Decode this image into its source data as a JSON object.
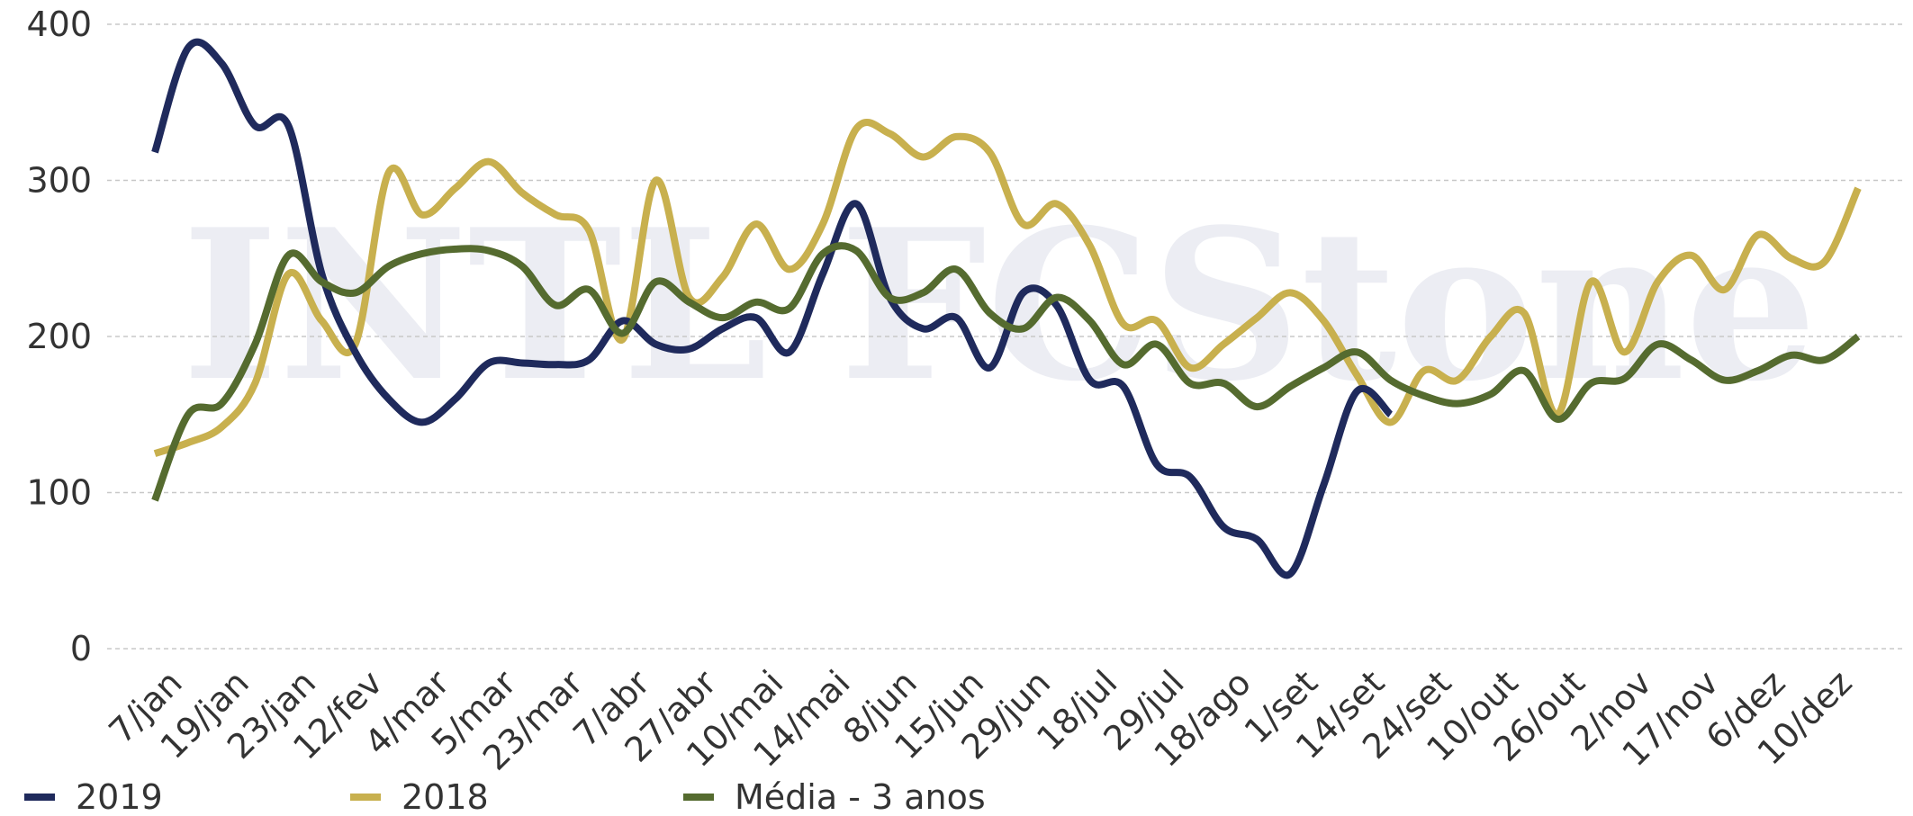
{
  "chart_data": {
    "type": "line",
    "watermark": "INTL FCStone",
    "categories": [
      "7/jan",
      null,
      "19/jan",
      null,
      "23/jan",
      null,
      "12/fev",
      null,
      "4/mar",
      null,
      "5/mar",
      null,
      "23/mar",
      null,
      "7/abr",
      null,
      "27/abr",
      null,
      "10/mai",
      null,
      "14/mai",
      null,
      "8/jun",
      null,
      "15/jun",
      null,
      "29/jun",
      null,
      "18/jul",
      null,
      "29/jul",
      null,
      "18/ago",
      null,
      "1/set",
      null,
      "14/set",
      null,
      "24/set",
      null,
      "10/out",
      null,
      "26/out",
      null,
      "2/nov",
      null,
      "17/nov",
      null,
      "6/dez",
      null,
      "10/dez",
      null
    ],
    "series": [
      {
        "name": "2019",
        "color": "#1f2a5c",
        "values": [
          318,
          385,
          375,
          335,
          335,
          240,
          190,
          160,
          145,
          160,
          183,
          183,
          182,
          185,
          210,
          195,
          192,
          205,
          212,
          190,
          240,
          285,
          225,
          205,
          212,
          180,
          228,
          220,
          172,
          168,
          118,
          110,
          78,
          70,
          48,
          105,
          165,
          150,
          null,
          null,
          null,
          null,
          null,
          null,
          null,
          null,
          null,
          null,
          null,
          null,
          null,
          null
        ]
      },
      {
        "name": "2018",
        "color": "#c8b04e",
        "values": [
          125,
          132,
          142,
          170,
          240,
          210,
          195,
          305,
          278,
          295,
          312,
          292,
          278,
          268,
          198,
          300,
          225,
          238,
          272,
          243,
          272,
          333,
          330,
          315,
          328,
          318,
          272,
          285,
          258,
          208,
          210,
          180,
          195,
          212,
          228,
          210,
          175,
          145,
          178,
          172,
          200,
          215,
          150,
          235,
          190,
          235,
          252,
          230,
          265,
          250,
          248,
          295
        ]
      },
      {
        "name": "Média - 3 anos",
        "color": "#556b2f",
        "values": [
          95,
          150,
          157,
          195,
          252,
          235,
          228,
          245,
          253,
          256,
          255,
          245,
          220,
          230,
          202,
          235,
          222,
          212,
          222,
          218,
          253,
          255,
          225,
          228,
          243,
          215,
          205,
          225,
          210,
          182,
          195,
          170,
          170,
          155,
          168,
          180,
          190,
          172,
          162,
          157,
          163,
          178,
          147,
          170,
          173,
          195,
          185,
          172,
          178,
          188,
          185,
          200
        ]
      }
    ],
    "ylim": [
      0,
      400
    ],
    "yticks": [
      0,
      100,
      200,
      300,
      400
    ],
    "grid": true,
    "legend": "bottom"
  }
}
